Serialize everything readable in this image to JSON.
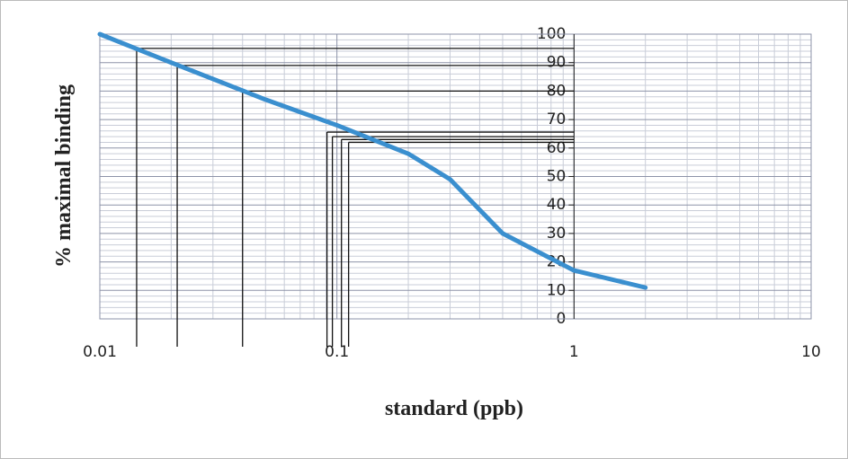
{
  "chart_data": {
    "type": "line",
    "xlabel": "standard (ppb)",
    "ylabel": "% maximal  binding",
    "x": [
      0.01,
      0.02,
      0.05,
      0.1,
      0.2,
      0.3,
      0.5,
      1,
      2
    ],
    "series": [
      {
        "color": "#3a8fcf",
        "values": [
          100,
          90,
          77,
          68,
          58,
          49,
          30,
          17,
          11
        ]
      }
    ],
    "xlim": [
      0.01,
      10
    ],
    "xticks": [
      0.01,
      0.1,
      1,
      10
    ],
    "xscale": "log",
    "ylim": [
      0,
      100
    ],
    "yticks": [
      0,
      10,
      20,
      30,
      40,
      50,
      60,
      70,
      80,
      90,
      100
    ],
    "y_axis_at_x": 1,
    "grid": true,
    "minor_grid": true,
    "guides": [
      {
        "x": 0.0143,
        "y": 95
      },
      {
        "x": 0.0212,
        "y": 89
      },
      {
        "x": 0.04,
        "y": 80
      },
      {
        "x": 0.0908,
        "y": 65.6
      },
      {
        "x": 0.0957,
        "y": 64
      },
      {
        "x": 0.1045,
        "y": 63
      },
      {
        "x": 0.112,
        "y": 62
      }
    ]
  }
}
